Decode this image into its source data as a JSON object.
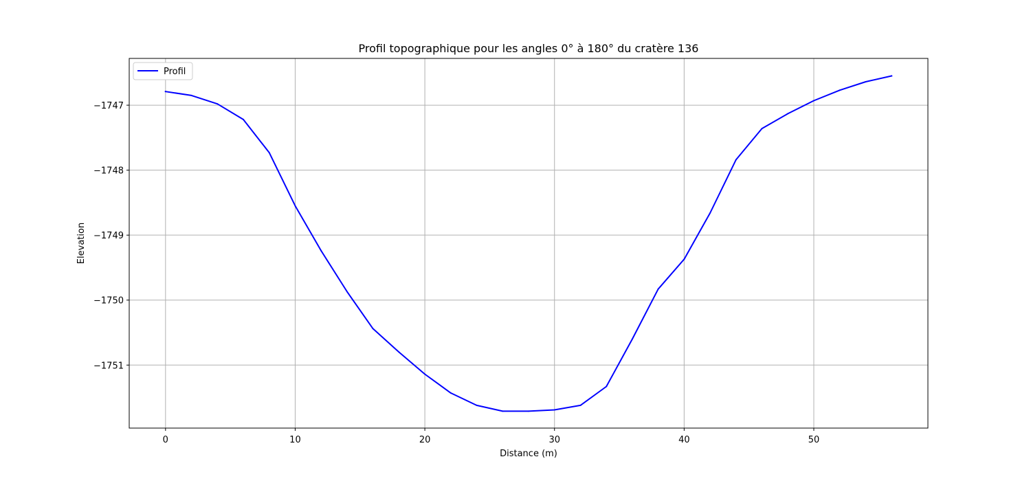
{
  "chart_data": {
    "type": "line",
    "title": "Profil topographique pour les angles 0° à 180° du cratère 136",
    "xlabel": "Distance (m)",
    "ylabel": "Elevation",
    "xlim": [
      -2.8,
      58.8
    ],
    "ylim": [
      -1751.97,
      -1746.28
    ],
    "grid": true,
    "legend_position": "top-left",
    "x_ticks": [
      {
        "value": 0,
        "label": "0"
      },
      {
        "value": 10,
        "label": "10"
      },
      {
        "value": 20,
        "label": "20"
      },
      {
        "value": 30,
        "label": "30"
      },
      {
        "value": 40,
        "label": "40"
      },
      {
        "value": 50,
        "label": "50"
      }
    ],
    "y_ticks": [
      {
        "value": -1747,
        "label": "−1747"
      },
      {
        "value": -1748,
        "label": "−1748"
      },
      {
        "value": -1749,
        "label": "−1749"
      },
      {
        "value": -1750,
        "label": "−1750"
      },
      {
        "value": -1751,
        "label": "−1751"
      }
    ],
    "series": [
      {
        "name": "Profil",
        "color": "#0000ff",
        "x": [
          0,
          2,
          4,
          6,
          8,
          10,
          12,
          14,
          16,
          18,
          20,
          22,
          24,
          26,
          28,
          30,
          32,
          34,
          36,
          38,
          40,
          42,
          44,
          46,
          48,
          50,
          52,
          54,
          56
        ],
        "y": [
          -1746.79,
          -1746.85,
          -1746.98,
          -1747.22,
          -1747.73,
          -1748.55,
          -1749.24,
          -1749.87,
          -1750.44,
          -1750.8,
          -1751.14,
          -1751.43,
          -1751.62,
          -1751.71,
          -1751.71,
          -1751.69,
          -1751.62,
          -1751.33,
          -1750.6,
          -1749.83,
          -1749.37,
          -1748.66,
          -1747.84,
          -1747.36,
          -1747.13,
          -1746.93,
          -1746.77,
          -1746.64,
          -1746.55
        ]
      }
    ]
  }
}
